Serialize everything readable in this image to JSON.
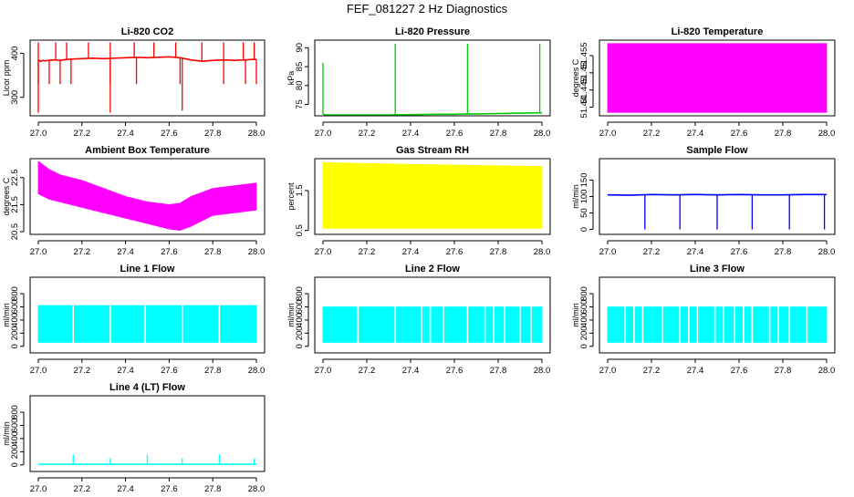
{
  "figure": {
    "title": "FEF_081227  2 Hz Diagnostics"
  },
  "colors": {
    "red": "#ff0000",
    "green": "#00cc00",
    "magenta": "#ff00ff",
    "yellow": "#ffff00",
    "blue": "#0000ff",
    "cyan": "#00ffff"
  },
  "chart_data": [
    {
      "type": "line",
      "title": "Li-820 CO2",
      "ylabel": "Licor ppm",
      "xlim": [
        27.0,
        28.0
      ],
      "xticks": [
        27.0,
        27.2,
        27.4,
        27.6,
        27.8,
        28.0
      ],
      "ylim": [
        258,
        430
      ],
      "yticks": [
        300,
        400
      ],
      "color": "#ff0000",
      "series": [
        {
          "name": "CO2",
          "kind": "line",
          "x": [
            27.0,
            27.01,
            27.02,
            27.03,
            27.05,
            27.07,
            27.1,
            27.13,
            27.15,
            27.2,
            27.25,
            27.3,
            27.35,
            27.4,
            27.45,
            27.5,
            27.55,
            27.6,
            27.65,
            27.7,
            27.75,
            27.8,
            27.85,
            27.9,
            27.95,
            27.98,
            28.0
          ],
          "y": [
            385,
            382,
            384,
            383,
            384,
            385,
            384,
            386,
            387,
            388,
            389,
            388,
            389,
            390,
            391,
            390,
            391,
            392,
            390,
            385,
            382,
            384,
            385,
            384,
            385,
            386,
            386
          ]
        }
      ],
      "spikes": [
        {
          "x": [
            27.0,
            27.08,
            27.13,
            27.23,
            27.33,
            27.44,
            27.53,
            27.63,
            27.75,
            27.85,
            27.94,
            27.99
          ],
          "to": 425
        },
        {
          "x": [
            27.0,
            27.05,
            27.1,
            27.15,
            27.33,
            27.45,
            27.65,
            27.85,
            27.95,
            28.0
          ],
          "to": 330
        }
      ],
      "deep_spikes": [
        {
          "x": 27.0,
          "y": 265
        },
        {
          "x": 27.33,
          "y": 265
        },
        {
          "x": 27.66,
          "y": 270
        }
      ]
    },
    {
      "type": "line",
      "title": "Li-820 Pressure",
      "ylabel": "kPa",
      "xlim": [
        27.0,
        28.0
      ],
      "xticks": [
        27.0,
        27.2,
        27.4,
        27.6,
        27.8,
        28.0
      ],
      "ylim": [
        72,
        92
      ],
      "yticks": [
        75,
        80,
        85,
        90
      ],
      "color": "#00cc00",
      "series": [
        {
          "name": "Pressure",
          "kind": "line",
          "x": [
            27.0,
            27.01,
            27.1,
            27.2,
            27.3,
            27.33,
            27.4,
            27.5,
            27.6,
            27.66,
            27.7,
            27.8,
            27.9,
            27.99,
            28.0
          ],
          "y": [
            72.5,
            72.2,
            72.0,
            72.1,
            72.2,
            72.3,
            72.3,
            72.4,
            72.4,
            72.5,
            72.5,
            72.6,
            72.7,
            72.8,
            72.8
          ]
        }
      ],
      "spikes": [
        {
          "x": [
            27.0
          ],
          "to": 86
        },
        {
          "x": [
            27.33,
            27.66,
            27.99
          ],
          "to": 91
        }
      ]
    },
    {
      "type": "area",
      "title": "Li-820 Temperature",
      "ylabel": "degrees C",
      "xlim": [
        27.0,
        28.0
      ],
      "xticks": [
        27.0,
        27.2,
        27.4,
        27.6,
        27.8,
        28.0
      ],
      "ylim": [
        51.4375,
        51.4595
      ],
      "yticks": [
        51.44,
        51.445,
        51.45,
        51.455
      ],
      "color": "#ff00ff",
      "series": [
        {
          "name": "Temperature",
          "kind": "band",
          "x": [
            27.0,
            28.0
          ],
          "lo": [
            51.4385,
            51.4385
          ],
          "hi": [
            51.4585,
            51.4585
          ]
        }
      ]
    },
    {
      "type": "area",
      "title": "Ambient Box Temperature",
      "ylabel": "degrees C",
      "xlim": [
        27.0,
        28.0
      ],
      "xticks": [
        27.0,
        27.2,
        27.4,
        27.6,
        27.8,
        28.0
      ],
      "ylim": [
        20.4,
        23.2
      ],
      "yticks": [
        20.5,
        21.5,
        22.5
      ],
      "color": "#ff00ff",
      "series": [
        {
          "name": "Box Temperature",
          "kind": "band",
          "x": [
            27.0,
            27.05,
            27.1,
            27.2,
            27.3,
            27.4,
            27.5,
            27.6,
            27.65,
            27.7,
            27.8,
            27.9,
            28.0
          ],
          "lo": [
            21.9,
            21.7,
            21.6,
            21.4,
            21.2,
            21.0,
            20.8,
            20.6,
            20.55,
            20.7,
            21.1,
            21.2,
            21.3
          ],
          "hi": [
            23.1,
            22.8,
            22.6,
            22.4,
            22.1,
            21.8,
            21.6,
            21.5,
            21.55,
            21.8,
            22.1,
            22.2,
            22.3
          ]
        }
      ]
    },
    {
      "type": "area",
      "title": "Gas Stream RH",
      "ylabel": "percent",
      "xlim": [
        27.0,
        28.0
      ],
      "xticks": [
        27.0,
        27.2,
        27.4,
        27.6,
        27.8,
        28.0
      ],
      "ylim": [
        0.4,
        2.3
      ],
      "yticks": [
        0.5,
        1.5
      ],
      "color": "#ffff00",
      "series": [
        {
          "name": "RH",
          "kind": "band",
          "x": [
            27.0,
            27.5,
            28.0
          ],
          "lo": [
            0.55,
            0.55,
            0.55
          ],
          "hi": [
            2.2,
            2.15,
            2.1
          ]
        }
      ]
    },
    {
      "type": "line",
      "title": "Sample Flow",
      "ylabel": "ml/min",
      "xlim": [
        27.0,
        28.0
      ],
      "xticks": [
        27.0,
        27.2,
        27.4,
        27.6,
        27.8,
        28.0
      ],
      "ylim": [
        -15,
        215
      ],
      "yticks": [
        0,
        50,
        100,
        150
      ],
      "color": "#0000ff",
      "series": [
        {
          "name": "Sample Flow",
          "kind": "line",
          "x": [
            27.0,
            27.1,
            27.2,
            27.3,
            27.4,
            27.5,
            27.6,
            27.7,
            27.8,
            27.9,
            28.0
          ],
          "y": [
            105,
            104,
            106,
            105,
            106,
            105,
            106,
            105,
            105,
            106,
            106
          ]
        }
      ],
      "spikes": [
        {
          "x": [
            27.17,
            27.33,
            27.5,
            27.66,
            27.83,
            27.99
          ],
          "to": 0
        }
      ]
    },
    {
      "type": "area",
      "title": "Line 1 Flow",
      "ylabel": "ml/min",
      "xlim": [
        27.0,
        28.0
      ],
      "xticks": [
        27.0,
        27.2,
        27.4,
        27.6,
        27.8,
        28.0
      ],
      "ylim": [
        -100,
        1050
      ],
      "yticks": [
        0,
        200,
        400,
        600,
        800
      ],
      "color": "#00ffff",
      "series": [
        {
          "name": "Line 1",
          "kind": "band",
          "x": [
            27.0,
            28.0
          ],
          "lo": [
            60,
            60
          ],
          "hi": [
            620,
            620
          ]
        }
      ],
      "gaps": [
        27.16,
        27.33,
        27.49,
        27.66,
        27.83
      ]
    },
    {
      "type": "area",
      "title": "Line 2 Flow",
      "ylabel": "ml/min",
      "xlim": [
        27.0,
        28.0
      ],
      "xticks": [
        27.0,
        27.2,
        27.4,
        27.6,
        27.8,
        28.0
      ],
      "ylim": [
        -100,
        1050
      ],
      "yticks": [
        0,
        200,
        400,
        600,
        800
      ],
      "color": "#00ffff",
      "series": [
        {
          "name": "Line 2",
          "kind": "band",
          "x": [
            27.0,
            28.0
          ],
          "lo": [
            60,
            60
          ],
          "hi": [
            600,
            600
          ]
        }
      ],
      "gaps": [
        27.16,
        27.33,
        27.45,
        27.49,
        27.55,
        27.66,
        27.74,
        27.78,
        27.83,
        27.9,
        27.95
      ]
    },
    {
      "type": "area",
      "title": "Line 3 Flow",
      "ylabel": "ml/min",
      "xlim": [
        27.0,
        28.0
      ],
      "xticks": [
        27.0,
        27.2,
        27.4,
        27.6,
        27.8,
        28.0
      ],
      "ylim": [
        -100,
        1050
      ],
      "yticks": [
        0,
        200,
        400,
        600,
        800
      ],
      "color": "#00ffff",
      "series": [
        {
          "name": "Line 3",
          "kind": "band",
          "x": [
            27.0,
            28.0
          ],
          "lo": [
            60,
            60
          ],
          "hi": [
            600,
            600
          ]
        }
      ],
      "gaps": [
        27.08,
        27.12,
        27.16,
        27.25,
        27.33,
        27.37,
        27.41,
        27.49,
        27.53,
        27.58,
        27.62,
        27.66,
        27.74,
        27.78,
        27.83,
        27.91
      ]
    },
    {
      "type": "line",
      "title": "Line 4 (LT) Flow",
      "ylabel": "ml/min",
      "xlim": [
        27.0,
        28.0
      ],
      "xticks": [
        27.0,
        27.2,
        27.4,
        27.6,
        27.8,
        28.0
      ],
      "ylim": [
        -100,
        1050
      ],
      "yticks": [
        0,
        200,
        400,
        600,
        800
      ],
      "color": "#00ffff",
      "series": [
        {
          "name": "Line 4",
          "kind": "line",
          "x": [
            27.0,
            27.5,
            28.0
          ],
          "y": [
            10,
            10,
            10
          ]
        }
      ],
      "spikes": [
        {
          "x": [
            27.16,
            27.5,
            27.83
          ],
          "to": 160
        },
        {
          "x": [
            27.33,
            27.66,
            27.99
          ],
          "to": 100
        }
      ]
    }
  ]
}
